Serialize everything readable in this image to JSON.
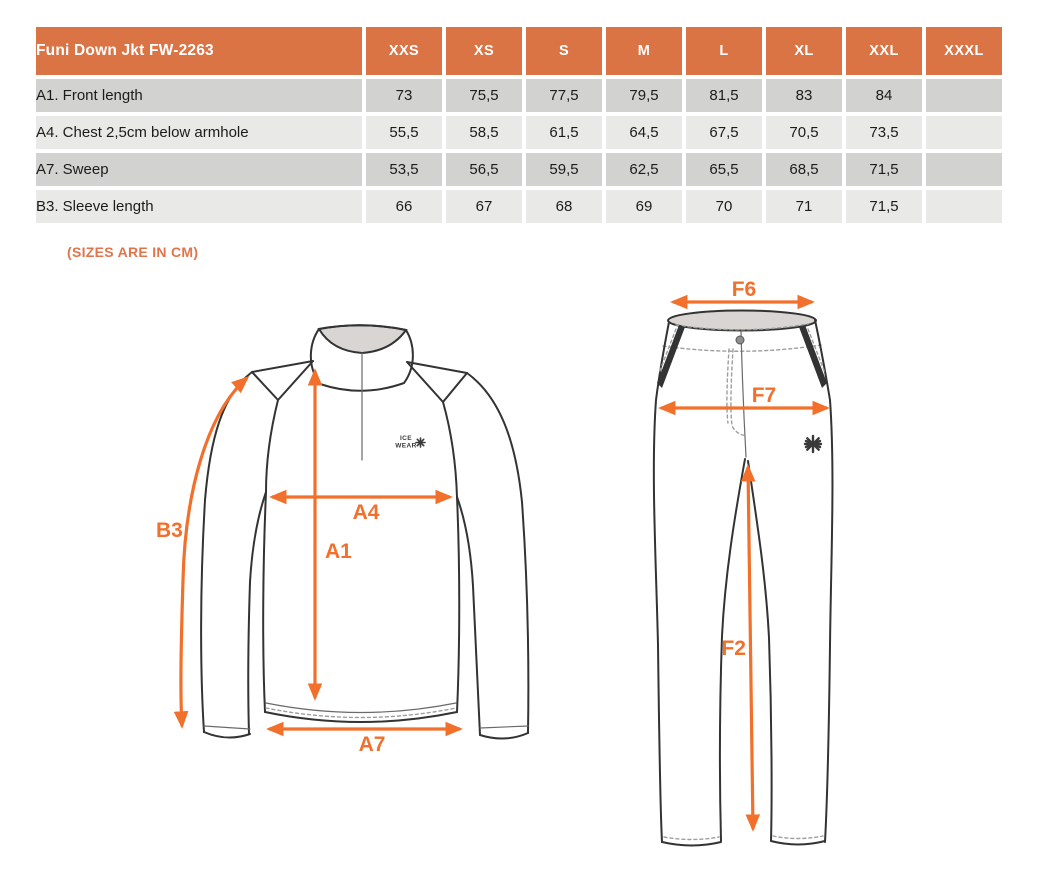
{
  "table": {
    "title": "Funi Down Jkt FW-2263",
    "size_headers": [
      "XXS",
      "XS",
      "S",
      "M",
      "L",
      "XL",
      "XXL",
      "XXXL"
    ],
    "rows": [
      {
        "label": "A1. Front length",
        "values": [
          "73",
          "75,5",
          "77,5",
          "79,5",
          "81,5",
          "83",
          "84",
          ""
        ]
      },
      {
        "label": "A4. Chest 2,5cm below armhole",
        "values": [
          "55,5",
          "58,5",
          "61,5",
          "64,5",
          "67,5",
          "70,5",
          "73,5",
          ""
        ]
      },
      {
        "label": "A7. Sweep",
        "values": [
          "53,5",
          "56,5",
          "59,5",
          "62,5",
          "65,5",
          "68,5",
          "71,5",
          ""
        ]
      },
      {
        "label": "B3. Sleeve length",
        "values": [
          "66",
          "67",
          "68",
          "69",
          "70",
          "71",
          "71,5",
          ""
        ]
      }
    ]
  },
  "note": "(SIZES ARE IN CM)",
  "diagram": {
    "jacket": {
      "brand_line1": "ICE",
      "brand_line2": "WEAR",
      "labels": {
        "b3": "B3",
        "a4": "A4",
        "a1": "A1",
        "a7": "A7"
      }
    },
    "pants": {
      "labels": {
        "f6": "F6",
        "f7": "F7",
        "f2": "F2"
      }
    }
  },
  "colors": {
    "header_orange": "#DA7445",
    "arrow_orange": "#F1702B",
    "note_orange": "#E1744B",
    "row_dark": "#D2D2D1",
    "row_light": "#E9E9E7",
    "outline_dark": "#333333",
    "detail_gray": "#9E9E9E",
    "fill_gray": "#D8D5D2"
  }
}
